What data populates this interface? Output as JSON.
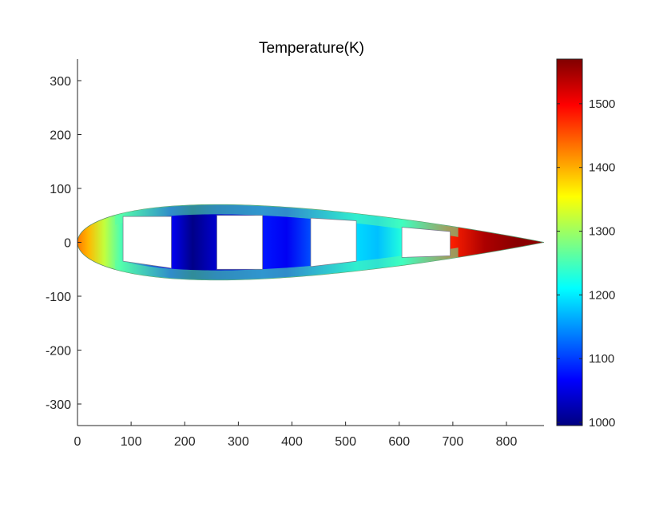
{
  "chart_data": {
    "type": "heatmap",
    "title": "Temperature(K)",
    "xlabel": "",
    "ylabel": "",
    "xlim": [
      0,
      870
    ],
    "ylim": [
      -340,
      340
    ],
    "x_ticks": [
      "0",
      "100",
      "200",
      "300",
      "400",
      "500",
      "600",
      "700",
      "800"
    ],
    "y_ticks": [
      "300",
      "200",
      "100",
      "0",
      "-100",
      "-200",
      "-300"
    ],
    "grid": false,
    "colormap": "jet",
    "colorbar": {
      "position": "right",
      "range": [
        995,
        1570
      ],
      "ticks": [
        "1000",
        "1100",
        "1200",
        "1300",
        "1400",
        "1500"
      ]
    },
    "airfoil": {
      "chord_x": [
        0,
        870
      ],
      "max_half_thickness": 70,
      "leading_edge_temperature": 1420,
      "trailing_edge_temperature": 1560,
      "skin_temperature": 1260
    },
    "cooling_passages": [
      {
        "x_range": [
          85,
          175
        ],
        "top_y": [
          48,
          48
        ],
        "bottom_y": [
          -35,
          -48
        ]
      },
      {
        "x_range": [
          260,
          345
        ],
        "top_y": [
          50,
          50
        ],
        "bottom_y": [
          -50,
          -50
        ]
      },
      {
        "x_range": [
          435,
          520
        ],
        "top_y": [
          45,
          40
        ],
        "bottom_y": [
          -45,
          -35
        ]
      },
      {
        "x_range": [
          605,
          695
        ],
        "top_y": [
          28,
          20
        ],
        "bottom_y": [
          -28,
          -25
        ]
      }
    ],
    "webs": [
      {
        "x_range": [
          175,
          260
        ],
        "temperature": 1000
      },
      {
        "x_range": [
          345,
          435
        ],
        "temperature": 1060
      },
      {
        "x_range": [
          520,
          605
        ],
        "temperature": 1180
      },
      {
        "x_range": [
          695,
          870
        ],
        "temperature": 1540
      }
    ]
  }
}
